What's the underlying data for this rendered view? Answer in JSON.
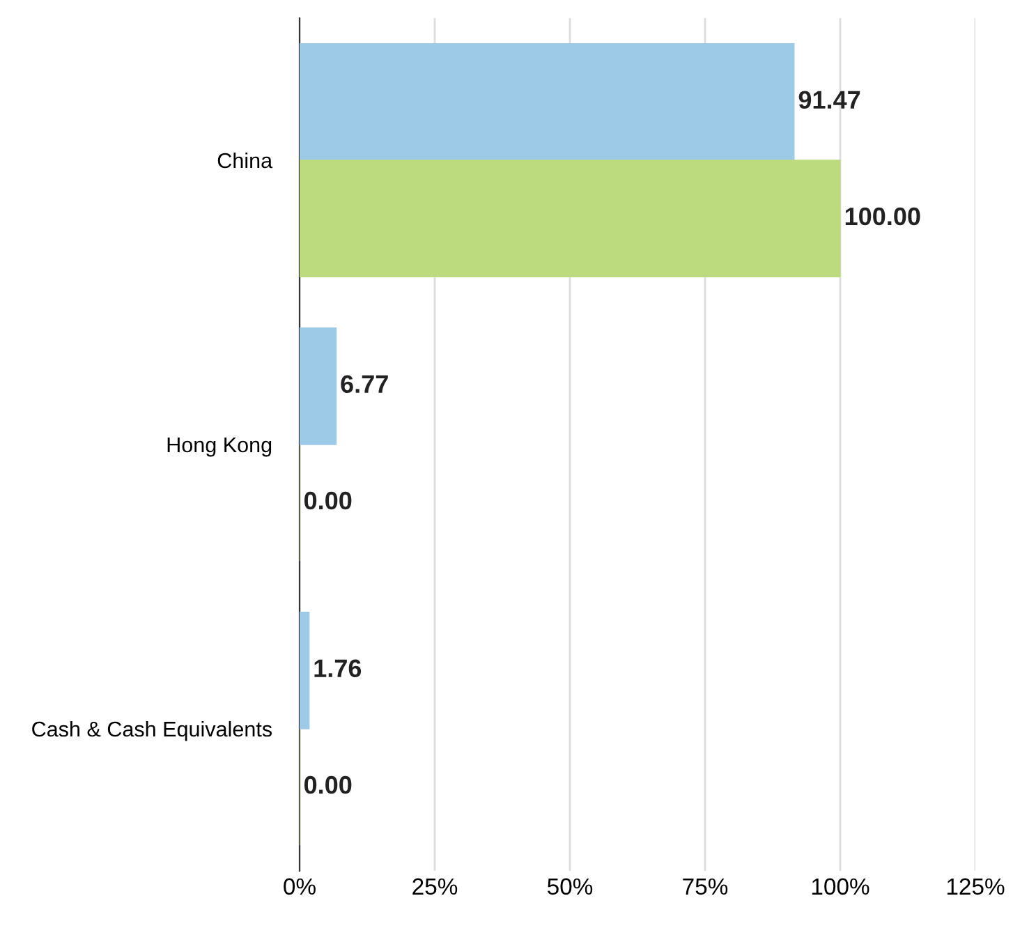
{
  "chart_data": {
    "type": "bar",
    "orientation": "horizontal",
    "categories": [
      "China",
      "Hong Kong",
      "Cash & Cash Equivalents"
    ],
    "series": [
      {
        "color": "#9dcbe7",
        "values": [
          91.47,
          6.77,
          1.76
        ],
        "value_labels": [
          "91.47",
          "6.77",
          "1.76"
        ]
      },
      {
        "color": "#bcdb7e",
        "values": [
          100.0,
          0.0,
          0.0
        ],
        "value_labels": [
          "100.00",
          "0.00",
          "0.00"
        ]
      }
    ],
    "xlim": [
      0,
      125
    ],
    "xticks": [
      {
        "value": 0,
        "label": "0%"
      },
      {
        "value": 25,
        "label": "25%"
      },
      {
        "value": 50,
        "label": "50%"
      },
      {
        "value": 75,
        "label": "75%"
      },
      {
        "value": 100,
        "label": "100%"
      },
      {
        "value": 125,
        "label": "125%"
      }
    ],
    "grid": "x",
    "legend": false
  }
}
